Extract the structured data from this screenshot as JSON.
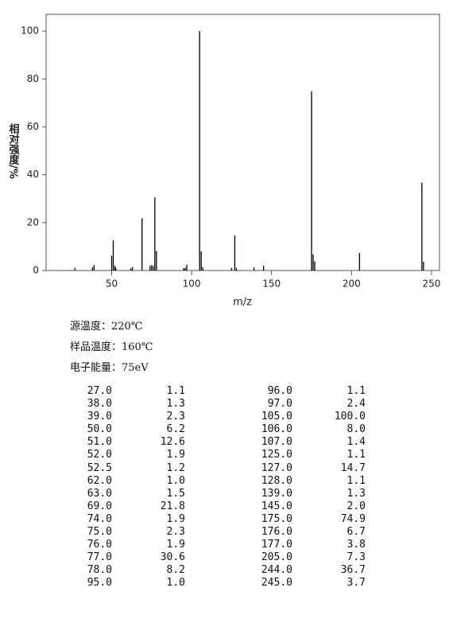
{
  "chart_data": {
    "type": "bar",
    "x_label": "m/z",
    "y_label": "相对强度/%",
    "x": [
      27,
      38,
      39,
      50,
      51,
      52,
      52.5,
      62,
      63,
      69,
      74,
      75,
      76,
      77,
      78,
      95,
      96,
      97,
      105,
      106,
      107,
      125,
      127,
      128,
      139,
      145,
      175,
      176,
      177,
      205,
      244,
      245
    ],
    "values": [
      1.1,
      1.3,
      2.3,
      6.2,
      12.6,
      1.9,
      1.2,
      1.0,
      1.5,
      21.8,
      1.9,
      2.3,
      1.9,
      30.6,
      8.2,
      1.0,
      1.1,
      2.4,
      100,
      8.0,
      1.4,
      1.1,
      14.7,
      1.1,
      1.3,
      2.0,
      74.9,
      6.7,
      3.8,
      7.3,
      36.7,
      3.7
    ],
    "color": "#000000",
    "xlim": [
      9,
      255
    ],
    "ylim": [
      0,
      107
    ],
    "xticks": [
      50,
      100,
      150,
      200,
      250
    ],
    "yticks": [
      0,
      20,
      40,
      60,
      80,
      100
    ]
  },
  "conditions": [
    "源温度：220℃",
    "样品温度：160℃",
    "电子能量：75eV"
  ],
  "table": {
    "rows": [
      [
        "27.0",
        "1.1",
        "96.0",
        "1.1"
      ],
      [
        "38.0",
        "1.3",
        "97.0",
        "2.4"
      ],
      [
        "39.0",
        "2.3",
        "105.0",
        "100.0"
      ],
      [
        "50.0",
        "6.2",
        "106.0",
        "8.0"
      ],
      [
        "51.0",
        "12.6",
        "107.0",
        "1.4"
      ],
      [
        "52.0",
        "1.9",
        "125.0",
        "1.1"
      ],
      [
        "52.5",
        "1.2",
        "127.0",
        "14.7"
      ],
      [
        "62.0",
        "1.0",
        "128.0",
        "1.1"
      ],
      [
        "63.0",
        "1.5",
        "139.0",
        "1.3"
      ],
      [
        "69.0",
        "21.8",
        "145.0",
        "2.0"
      ],
      [
        "74.0",
        "1.9",
        "175.0",
        "74.9"
      ],
      [
        "75.0",
        "2.3",
        "176.0",
        "6.7"
      ],
      [
        "76.0",
        "1.9",
        "177.0",
        "3.8"
      ],
      [
        "77.0",
        "30.6",
        "205.0",
        "7.3"
      ],
      [
        "78.0",
        "8.2",
        "244.0",
        "36.7"
      ],
      [
        "95.0",
        "1.0",
        "245.0",
        "3.7"
      ]
    ]
  }
}
